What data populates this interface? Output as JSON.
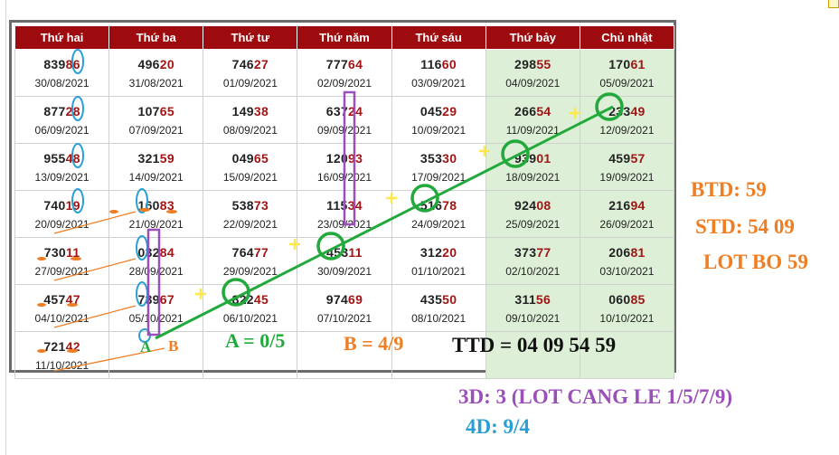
{
  "table": {
    "headers": [
      "Thứ hai",
      "Thứ ba",
      "Thứ tư",
      "Thứ năm",
      "Thứ sáu",
      "Thứ bảy",
      "Chủ nhật"
    ],
    "rows": [
      [
        {
          "head": "839",
          "tail": "86",
          "date": "30/08/2021"
        },
        {
          "head": "496",
          "tail": "20",
          "date": "31/08/2021"
        },
        {
          "head": "746",
          "tail": "27",
          "date": "01/09/2021"
        },
        {
          "head": "777",
          "tail": "64",
          "date": "02/09/2021"
        },
        {
          "head": "116",
          "tail": "60",
          "date": "03/09/2021"
        },
        {
          "head": "298",
          "tail": "55",
          "date": "04/09/2021"
        },
        {
          "head": "170",
          "tail": "61",
          "date": "05/09/2021"
        }
      ],
      [
        {
          "head": "877",
          "tail": "28",
          "date": "06/09/2021"
        },
        {
          "head": "107",
          "tail": "65",
          "date": "07/09/2021"
        },
        {
          "head": "149",
          "tail": "38",
          "date": "08/09/2021"
        },
        {
          "head": "637",
          "tail": "24",
          "date": "09/09/2021"
        },
        {
          "head": "045",
          "tail": "29",
          "date": "10/09/2021"
        },
        {
          "head": "266",
          "tail": "54",
          "date": "11/09/2021"
        },
        {
          "head": "233",
          "tail": "49",
          "date": "12/09/2021"
        }
      ],
      [
        {
          "head": "955",
          "tail": "48",
          "date": "13/09/2021"
        },
        {
          "head": "321",
          "tail": "59",
          "date": "14/09/2021"
        },
        {
          "head": "049",
          "tail": "65",
          "date": "15/09/2021"
        },
        {
          "head": "120",
          "tail": "93",
          "date": "16/09/2021"
        },
        {
          "head": "353",
          "tail": "30",
          "date": "17/09/2021"
        },
        {
          "head": "939",
          "tail": "01",
          "date": "18/09/2021"
        },
        {
          "head": "459",
          "tail": "57",
          "date": "19/09/2021"
        }
      ],
      [
        {
          "head": "740",
          "tail": "19",
          "date": "20/09/2021"
        },
        {
          "head": "160",
          "tail": "83",
          "date": "21/09/2021"
        },
        {
          "head": "538",
          "tail": "73",
          "date": "22/09/2021"
        },
        {
          "head": "115",
          "tail": "34",
          "date": "23/09/2021"
        },
        {
          "head": "516",
          "tail": "78",
          "date": "24/09/2021"
        },
        {
          "head": "924",
          "tail": "08",
          "date": "25/09/2021"
        },
        {
          "head": "216",
          "tail": "94",
          "date": "26/09/2021"
        }
      ],
      [
        {
          "head": "730",
          "tail": "11",
          "date": "27/09/2021"
        },
        {
          "head": "032",
          "tail": "84",
          "date": "28/09/2021"
        },
        {
          "head": "764",
          "tail": "77",
          "date": "29/09/2021"
        },
        {
          "head": "453",
          "tail": "11",
          "date": "30/09/2021"
        },
        {
          "head": "312",
          "tail": "20",
          "date": "01/10/2021"
        },
        {
          "head": "373",
          "tail": "77",
          "date": "02/10/2021"
        },
        {
          "head": "206",
          "tail": "81",
          "date": "03/10/2021"
        }
      ],
      [
        {
          "head": "457",
          "tail": "47",
          "date": "04/10/2021"
        },
        {
          "head": "739",
          "tail": "67",
          "date": "05/10/2021"
        },
        {
          "head": "822",
          "tail": "45",
          "date": "06/10/2021"
        },
        {
          "head": "974",
          "tail": "69",
          "date": "07/10/2021"
        },
        {
          "head": "435",
          "tail": "50",
          "date": "08/10/2021"
        },
        {
          "head": "311",
          "tail": "56",
          "date": "09/10/2021"
        },
        {
          "head": "060",
          "tail": "85",
          "date": "10/10/2021"
        }
      ],
      [
        {
          "head": "721",
          "tail": "42",
          "date": "11/10/2021"
        },
        null,
        null,
        null,
        null,
        null,
        null
      ]
    ]
  },
  "annotations": {
    "a_label": "A",
    "b_label": "B",
    "a_rule": "A = 0/5",
    "b_rule": "B = 4/9",
    "ttd": "TTD = 04 09 54 59",
    "btd": "BTD: 59",
    "std": "STD: 54 09",
    "lot_bo": "LOT BO 59",
    "three_d": "3D: 3 (LOT CANG LE 1/5/7/9)",
    "four_d": "4D: 9/4"
  },
  "colors": {
    "header_bg": "#9e0b0f",
    "tail_digits": "#a11515",
    "weekend_bg": "#ddefd6",
    "green_mark": "#22a93b",
    "orange_mark": "#ef7d22",
    "purple_mark": "#9b4fb8",
    "blue_mark": "#2a9fd6",
    "yellow_mark": "#ffe94a"
  }
}
